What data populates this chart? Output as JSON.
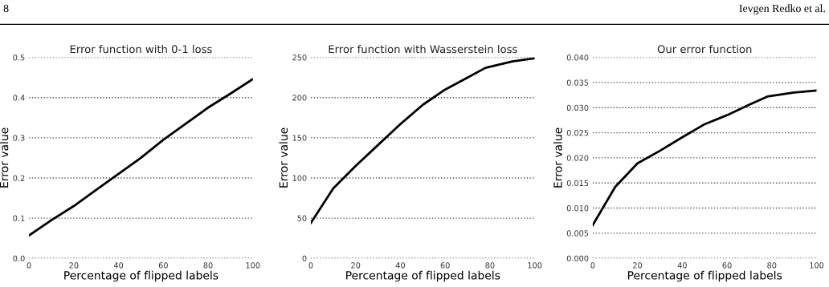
{
  "chart_data": [
    {
      "type": "line",
      "title": "Error function with 0-1 loss",
      "xlabel": "Percentage of flipped labels",
      "ylabel": "Error value",
      "annotations": [
        "8",
        "Ievgen Redko et al."
      ],
      "x": [
        0,
        10,
        20,
        30,
        40,
        50,
        60,
        70,
        80,
        90,
        100
      ],
      "series": [
        {
          "color": "#000000",
          "values": [
            0.057,
            0.095,
            0.13,
            0.17,
            0.21,
            0.25,
            0.295,
            0.335,
            0.375,
            0.41,
            0.446
          ]
        }
      ],
      "xlim": [
        0,
        100
      ],
      "xticks": [
        0,
        20,
        40,
        60,
        80,
        100
      ],
      "ylim": [
        0,
        0.5
      ],
      "yticks": [
        {
          "value": 0,
          "label": "0.0"
        },
        0.1,
        0.2,
        0.3,
        0.4,
        0.5
      ],
      "grid": "y",
      "line_style": "solid"
    },
    {
      "type": "line",
      "title": "Error function with Wasserstein loss",
      "xlabel": "Percentage of flipped labels",
      "ylabel": "Error value",
      "x": [
        0,
        10,
        20,
        30,
        40,
        50,
        60,
        70,
        78,
        90,
        100
      ],
      "series": [
        {
          "color": "#000000",
          "values": [
            44,
            87,
            115,
            141,
            167,
            191,
            210,
            225,
            237,
            245,
            249
          ]
        }
      ],
      "xlim": [
        0,
        100
      ],
      "xticks": [
        0,
        20,
        40,
        60,
        80,
        100
      ],
      "ylim": [
        0,
        250
      ],
      "yticks": [
        0,
        50,
        100,
        150,
        200,
        250
      ],
      "grid": "y",
      "line_style": "solid"
    },
    {
      "type": "line",
      "title": "Our error function",
      "xlabel": "Percentage of flipped labels",
      "ylabel": "Error value",
      "x": [
        0,
        10,
        20,
        30,
        40,
        50,
        60,
        70,
        78,
        90,
        100
      ],
      "series": [
        {
          "color": "#000000",
          "values": [
            0.0066,
            0.0142,
            0.0189,
            0.0214,
            0.0241,
            0.0267,
            0.0285,
            0.0306,
            0.0322,
            0.033,
            0.0334
          ]
        }
      ],
      "xlim": [
        0,
        100
      ],
      "xticks": [
        0,
        20,
        40,
        60,
        80,
        100
      ],
      "ylim": [
        0,
        0.04
      ],
      "yticks": [
        {
          "value": 0,
          "label": "0.000"
        },
        {
          "value": 0.005,
          "label": "0.005"
        },
        {
          "value": 0.01,
          "label": "0.010"
        },
        {
          "value": 0.015,
          "label": "0.015"
        },
        {
          "value": 0.02,
          "label": "0.020"
        },
        {
          "value": 0.025,
          "label": "0.025"
        },
        {
          "value": 0.03,
          "label": "0.030"
        },
        {
          "value": 0.035,
          "label": "0.035"
        },
        {
          "value": 0.04,
          "label": "0.040"
        }
      ],
      "grid": "y",
      "line_style": "solid"
    }
  ]
}
